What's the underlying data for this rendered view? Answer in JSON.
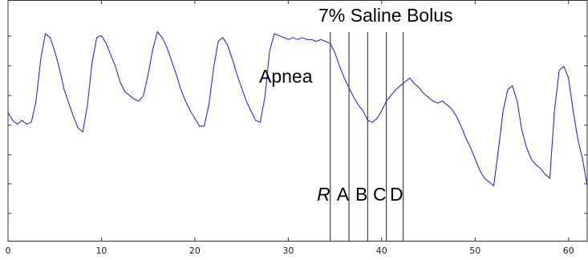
{
  "chart_data": {
    "type": "line",
    "title": "",
    "xlabel": "",
    "ylabel": "",
    "xlim": [
      0,
      62
    ],
    "x_ticks": [
      0,
      10,
      20,
      30,
      40,
      50,
      60
    ],
    "y_tick_count": 7,
    "grid": false,
    "line_color": "#2b2bd6",
    "marker_color": "#222222",
    "series": [
      {
        "x": [
          0,
          0.5,
          1,
          1.5,
          2,
          2.5,
          3,
          3.5,
          4,
          4.5,
          5,
          5.5,
          6,
          6.5,
          7,
          7.5,
          8,
          8.5,
          9,
          9.5,
          10,
          10.5,
          11,
          11.5,
          12,
          12.5,
          13,
          13.5,
          14,
          14.5,
          15,
          15.5,
          16,
          16.5,
          17,
          17.5,
          18,
          18.5,
          19,
          19.5,
          20,
          20.5,
          21,
          21.5,
          22,
          22.5,
          23,
          23.5,
          24,
          24.5,
          25,
          25.5,
          26,
          26.5,
          27,
          27.5,
          28,
          28.5,
          29,
          29.5,
          30,
          30.5,
          31,
          31.5,
          32,
          32.5,
          33,
          33.5,
          34,
          34.5,
          35,
          35.5,
          36,
          36.5,
          37,
          37.5,
          38,
          38.5,
          39,
          39.5,
          40,
          40.5,
          41,
          41.5,
          42,
          42.5,
          43,
          43.5,
          44,
          44.5,
          45,
          45.5,
          46,
          46.5,
          47,
          47.5,
          48,
          48.5,
          49,
          49.5,
          50,
          50.5,
          51,
          51.5,
          52,
          52.5,
          53,
          53.5,
          54,
          54.5,
          55,
          55.5,
          56,
          56.5,
          57,
          57.5,
          58,
          58.5,
          59,
          59.5,
          60,
          60.5,
          61,
          61.5,
          62
        ],
        "y": [
          0.54,
          0.5,
          0.48,
          0.5,
          0.48,
          0.49,
          0.6,
          0.82,
          0.95,
          0.93,
          0.86,
          0.77,
          0.66,
          0.59,
          0.52,
          0.46,
          0.44,
          0.58,
          0.8,
          0.93,
          0.94,
          0.9,
          0.84,
          0.78,
          0.7,
          0.65,
          0.63,
          0.61,
          0.6,
          0.63,
          0.74,
          0.87,
          0.96,
          0.93,
          0.88,
          0.81,
          0.74,
          0.66,
          0.6,
          0.55,
          0.51,
          0.47,
          0.47,
          0.58,
          0.77,
          0.91,
          0.93,
          0.89,
          0.82,
          0.74,
          0.67,
          0.6,
          0.55,
          0.5,
          0.49,
          0.62,
          0.86,
          0.95,
          0.94,
          0.93,
          0.92,
          0.93,
          0.92,
          0.93,
          0.92,
          0.92,
          0.91,
          0.92,
          0.91,
          0.9,
          0.85,
          0.78,
          0.72,
          0.67,
          0.62,
          0.58,
          0.55,
          0.5,
          0.49,
          0.51,
          0.55,
          0.6,
          0.63,
          0.66,
          0.68,
          0.7,
          0.72,
          0.69,
          0.67,
          0.64,
          0.62,
          0.6,
          0.59,
          0.6,
          0.58,
          0.56,
          0.52,
          0.47,
          0.41,
          0.36,
          0.3,
          0.24,
          0.2,
          0.18,
          0.16,
          0.35,
          0.55,
          0.66,
          0.68,
          0.6,
          0.45,
          0.36,
          0.3,
          0.27,
          0.25,
          0.22,
          0.2,
          0.55,
          0.76,
          0.78,
          0.72,
          0.55,
          0.4,
          0.3,
          0.16
        ]
      }
    ],
    "markers": [
      {
        "x": 34.5,
        "label": "R",
        "italic": true
      },
      {
        "x": 36.5,
        "label": "A",
        "italic": false
      },
      {
        "x": 38.5,
        "label": "B",
        "italic": false
      },
      {
        "x": 40.5,
        "label": "C",
        "italic": false
      },
      {
        "x": 42.3,
        "label": "D",
        "italic": false
      }
    ],
    "annotations": {
      "bolus": "7% Saline Bolus",
      "apnea": "Apnea"
    }
  }
}
